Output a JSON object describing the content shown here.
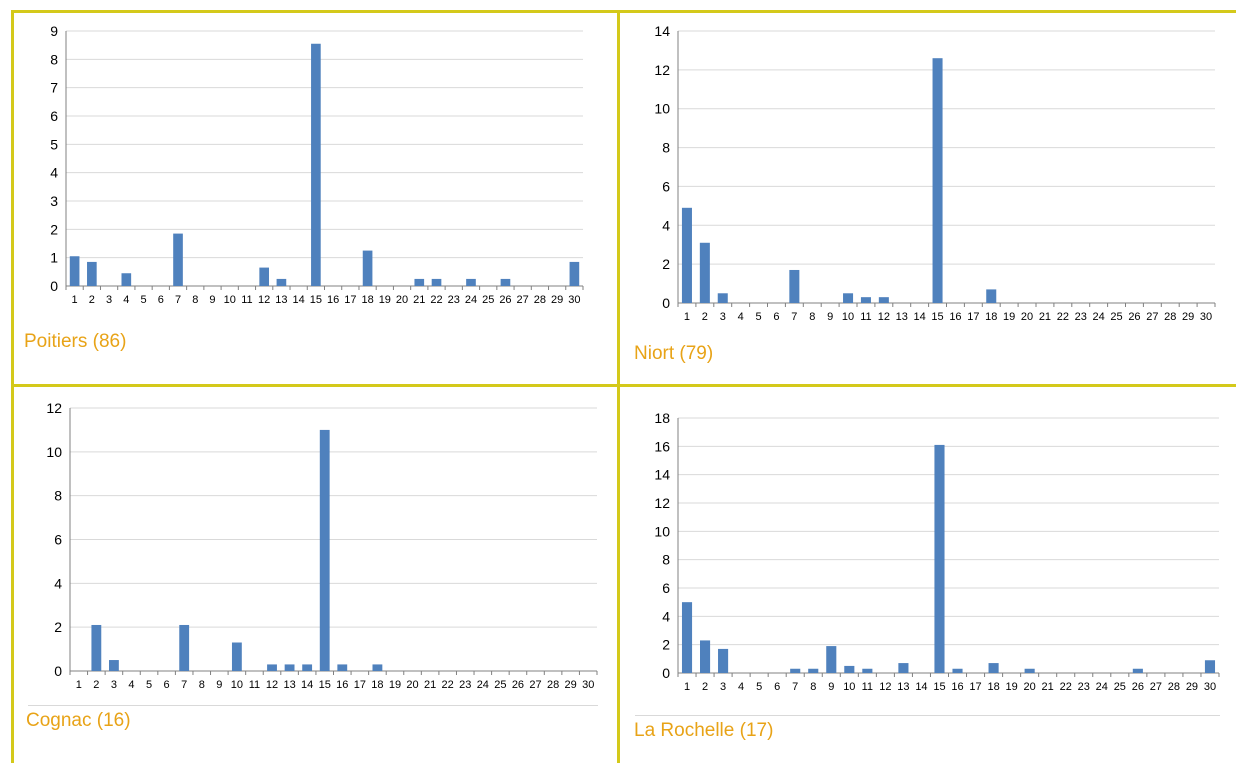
{
  "colors": {
    "bar": "#4F81BD",
    "frame": "#D4C91A",
    "caption": "#E8A317",
    "grid": "#d9d9d9"
  },
  "chart_data": [
    {
      "type": "bar",
      "title": "Poitiers (86)",
      "categories": [
        "1",
        "2",
        "3",
        "4",
        "5",
        "6",
        "7",
        "8",
        "9",
        "10",
        "11",
        "12",
        "13",
        "14",
        "15",
        "16",
        "17",
        "18",
        "19",
        "20",
        "21",
        "22",
        "23",
        "24",
        "25",
        "26",
        "27",
        "28",
        "29",
        "30"
      ],
      "values": [
        1.05,
        0.85,
        0,
        0.45,
        0,
        0,
        1.85,
        0,
        0,
        0,
        0,
        0.65,
        0.25,
        0,
        8.55,
        0,
        0,
        1.25,
        0,
        0,
        0.25,
        0.25,
        0,
        0.25,
        0,
        0.25,
        0,
        0,
        0,
        0.85
      ],
      "ylim": [
        0,
        9
      ],
      "yticks": [
        0,
        1,
        2,
        3,
        4,
        5,
        6,
        7,
        8,
        9
      ],
      "grid": true,
      "legend": "none"
    },
    {
      "type": "bar",
      "title": "Niort (79)",
      "categories": [
        "1",
        "2",
        "3",
        "4",
        "5",
        "6",
        "7",
        "8",
        "9",
        "10",
        "11",
        "12",
        "13",
        "14",
        "15",
        "16",
        "17",
        "18",
        "19",
        "20",
        "21",
        "22",
        "23",
        "24",
        "25",
        "26",
        "27",
        "28",
        "29",
        "30"
      ],
      "values": [
        4.9,
        3.1,
        0.5,
        0,
        0,
        0,
        1.7,
        0,
        0,
        0.5,
        0.3,
        0.3,
        0,
        0,
        12.6,
        0,
        0,
        0.7,
        0,
        0,
        0,
        0,
        0,
        0,
        0,
        0,
        0,
        0,
        0,
        0
      ],
      "ylim": [
        0,
        14
      ],
      "yticks": [
        0,
        2,
        4,
        6,
        8,
        10,
        12,
        14
      ],
      "grid": true,
      "legend": "none"
    },
    {
      "type": "bar",
      "title": "Cognac (16)",
      "categories": [
        "1",
        "2",
        "3",
        "4",
        "5",
        "6",
        "7",
        "8",
        "9",
        "10",
        "11",
        "12",
        "13",
        "14",
        "15",
        "16",
        "17",
        "18",
        "19",
        "20",
        "21",
        "22",
        "23",
        "24",
        "25",
        "26",
        "27",
        "28",
        "29",
        "30"
      ],
      "values": [
        0,
        2.1,
        0.5,
        0,
        0,
        0,
        2.1,
        0,
        0,
        1.3,
        0,
        0.3,
        0.3,
        0.3,
        11,
        0.3,
        0,
        0.3,
        0,
        0,
        0,
        0,
        0,
        0,
        0,
        0,
        0,
        0,
        0,
        0
      ],
      "ylim": [
        0,
        12
      ],
      "yticks": [
        0,
        2,
        4,
        6,
        8,
        10,
        12
      ],
      "grid": true,
      "legend": "none"
    },
    {
      "type": "bar",
      "title": "La Rochelle (17)",
      "categories": [
        "1",
        "2",
        "3",
        "4",
        "5",
        "6",
        "7",
        "8",
        "9",
        "10",
        "11",
        "12",
        "13",
        "14",
        "15",
        "16",
        "17",
        "18",
        "19",
        "20",
        "21",
        "22",
        "23",
        "24",
        "25",
        "26",
        "27",
        "28",
        "29",
        "30"
      ],
      "values": [
        5,
        2.3,
        1.7,
        0,
        0,
        0,
        0.3,
        0.3,
        1.9,
        0.5,
        0.3,
        0,
        0.7,
        0,
        16.1,
        0.3,
        0,
        0.7,
        0,
        0.3,
        0,
        0,
        0,
        0,
        0,
        0.3,
        0,
        0,
        0,
        0.9
      ],
      "ylim": [
        0,
        18
      ],
      "yticks": [
        0,
        2,
        4,
        6,
        8,
        10,
        12,
        14,
        16,
        18
      ],
      "grid": true,
      "legend": "none"
    }
  ]
}
